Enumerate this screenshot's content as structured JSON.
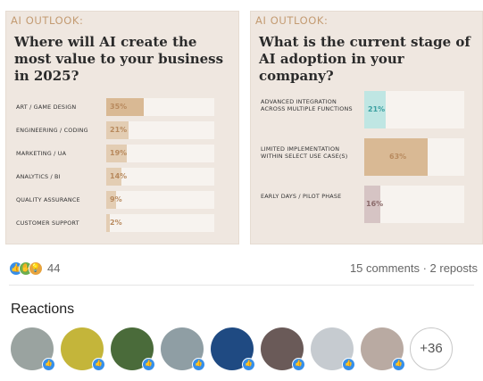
{
  "slides": {
    "left": {
      "kicker": "AI OUTLOOK:",
      "question": "Where will AI create the most value to your business in 2025?",
      "rows": [
        {
          "label": "ART / GAME DESIGN",
          "pct_text": "35%",
          "value": 35
        },
        {
          "label": "ENGINEERING / CODING",
          "pct_text": "21%",
          "value": 21
        },
        {
          "label": "MARKETING / UA",
          "pct_text": "19%",
          "value": 19
        },
        {
          "label": "ANALYTICS / BI",
          "pct_text": "14%",
          "value": 14
        },
        {
          "label": "QUALITY ASSURANCE",
          "pct_text": "9%",
          "value": 9
        },
        {
          "label": "CUSTOMER SUPPORT",
          "pct_text": "2%",
          "value": 2
        }
      ]
    },
    "right": {
      "kicker": "AI OUTLOOK:",
      "question": "What is the current stage of AI adoption in your company?",
      "rows": [
        {
          "label": "ADVANCED INTEGRATION ACROSS MULTIPLE FUNCTIONS",
          "pct_text": "21%",
          "value": 21
        },
        {
          "label": "LIMITED IMPLEMENTATION WITHIN SELECT USE CASE(S)",
          "pct_text": "63%",
          "value": 63
        },
        {
          "label": "EARLY DAYS / PILOT PHASE",
          "pct_text": "16%",
          "value": 16
        }
      ]
    }
  },
  "colors": {
    "card_bg": "#efe7e0",
    "bar_fill": "#e3cdb3",
    "bar_fill_strong": "#d9b994",
    "bar_fill_teal": "#bfe6e3",
    "bar_fill_mauve": "#d6c4c4",
    "accent_text": "#b88a5e",
    "teal_text": "#3a9fa0",
    "mauve_text": "#8c6b6b",
    "like_blue": "#378fe9"
  },
  "social": {
    "reaction_count": "44",
    "comments_reposts": "15 comments · 2 reposts",
    "reaction_icons": [
      "like-icon",
      "celebrate-icon",
      "insightful-icon"
    ]
  },
  "reactions": {
    "title": "Reactions",
    "more_label": "+36",
    "avatars": [
      {
        "name": "avatar-1",
        "bg": "#9aa3a0"
      },
      {
        "name": "avatar-2",
        "bg": "#c4b53a"
      },
      {
        "name": "avatar-3",
        "bg": "#4a6b3a"
      },
      {
        "name": "avatar-4",
        "bg": "#8f9ea4"
      },
      {
        "name": "avatar-5",
        "bg": "#1f4a82"
      },
      {
        "name": "avatar-6",
        "bg": "#6a5a58"
      },
      {
        "name": "avatar-7",
        "bg": "#c6cbd0"
      },
      {
        "name": "avatar-8",
        "bg": "#b9aaa2"
      }
    ]
  }
}
